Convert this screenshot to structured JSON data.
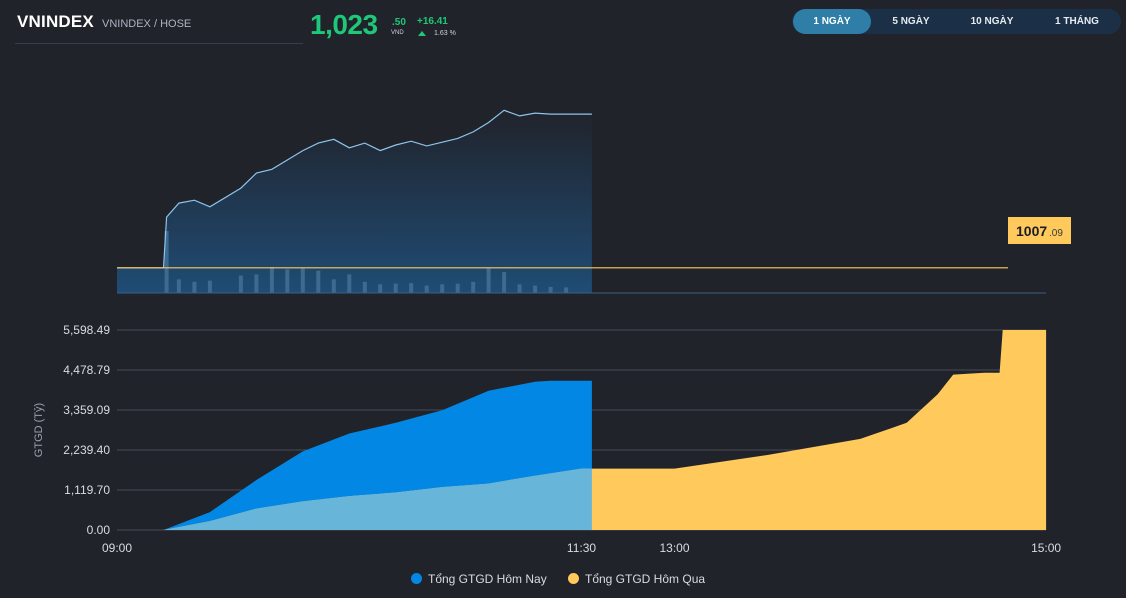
{
  "header": {
    "symbol": "VNINDEX",
    "exchange": "VNINDEX / HOSE",
    "price_int": "1,023",
    "price_dec": ".50",
    "currency": "VND",
    "change": "+16.41",
    "change_pct": "1.63 %",
    "up_color": "#1ec878"
  },
  "tabs": [
    {
      "label": "1 NGÀY",
      "active": true
    },
    {
      "label": "5 NGÀY",
      "active": false
    },
    {
      "label": "10 NGÀY",
      "active": false
    },
    {
      "label": "1 THÁNG",
      "active": false
    }
  ],
  "reference": {
    "int": "1007",
    "dec": ".09",
    "color": "#ffc95c"
  },
  "chart_data": [
    {
      "type": "area",
      "description_colors": {
        "line": "#8cc4ec",
        "fill": "#1f4c75",
        "volume": "#3e6a92"
      },
      "x": [
        "09:00",
        "09:15",
        "09:16",
        "09:20",
        "09:25",
        "09:30",
        "09:40",
        "09:45",
        "09:50",
        "09:55",
        "10:00",
        "10:05",
        "10:10",
        "10:15",
        "10:20",
        "10:25",
        "10:30",
        "10:35",
        "10:40",
        "10:45",
        "10:50",
        "10:55",
        "11:00",
        "11:05",
        "11:10",
        "11:15",
        "11:20",
        "11:25",
        "11:30",
        "11:40"
      ],
      "price": [
        1007.09,
        1007.09,
        1012.5,
        1014.0,
        1014.3,
        1013.6,
        1015.6,
        1017.2,
        1017.6,
        1018.6,
        1019.6,
        1020.4,
        1020.8,
        1019.9,
        1020.4,
        1019.6,
        1020.2,
        1020.6,
        1020.1,
        1020.5,
        1020.9,
        1021.6,
        1022.6,
        1023.9,
        1023.3,
        1023.6,
        1023.5,
        1023.5,
        1023.5,
        1023.5
      ],
      "volume": [
        0,
        0,
        100,
        22,
        18,
        20,
        28,
        30,
        42,
        38,
        40,
        36,
        22,
        30,
        18,
        14,
        15,
        16,
        12,
        14,
        15,
        18,
        40,
        34,
        14,
        12,
        10,
        9,
        0,
        0
      ],
      "reference": 1007.09,
      "ylim": [
        1004.4,
        1025.0
      ]
    },
    {
      "type": "area",
      "ylabel": "GTGD (Tỷ)",
      "ylim": [
        0,
        5598.49
      ],
      "yticks": [
        "0.00",
        "1,119.70",
        "2,239.40",
        "3,359.09",
        "4,478.79",
        "5,598.49"
      ],
      "xticks": [
        "09:00",
        "11:30",
        "13:00",
        "15:00"
      ],
      "series": [
        {
          "name": "Tổng GTGD Hôm Nay",
          "color": "#0288e4",
          "x": [
            "09:00",
            "09:15",
            "09:30",
            "09:45",
            "10:00",
            "10:15",
            "10:30",
            "10:45",
            "11:00",
            "11:15",
            "11:20",
            "11:30",
            "11:40"
          ],
          "values": [
            0,
            0,
            500,
            1400,
            2200,
            2700,
            3000,
            3350,
            3900,
            4150,
            4180,
            4180,
            4180
          ]
        },
        {
          "name": "Tổng GTGD Hôm Qua",
          "color": "#ffc95c",
          "x": [
            "09:00",
            "09:15",
            "09:30",
            "09:45",
            "10:00",
            "10:15",
            "10:30",
            "10:45",
            "11:00",
            "11:15",
            "11:30",
            "11:40",
            "13:00",
            "13:30",
            "14:00",
            "14:15",
            "14:25",
            "14:30",
            "14:40",
            "14:45",
            "14:46",
            "15:00"
          ],
          "values": [
            0,
            0,
            250,
            600,
            800,
            950,
            1050,
            1200,
            1300,
            1520,
            1720,
            1720,
            1720,
            2100,
            2550,
            3000,
            3800,
            4350,
            4400,
            4400,
            5598.49,
            5598.49
          ]
        }
      ]
    }
  ]
}
